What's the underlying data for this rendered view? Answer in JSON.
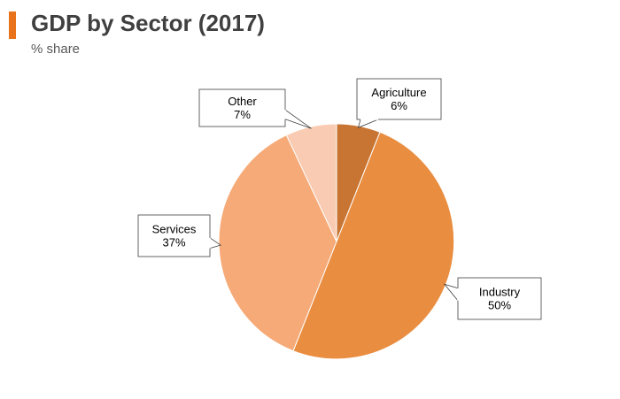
{
  "header": {
    "title": "GDP by Sector (2017)",
    "subtitle": "% share"
  },
  "colors": {
    "accent": "#E8731A",
    "agriculture": "#C87533",
    "industry": "#E98E41",
    "services": "#F6AA77",
    "other": "#F9CBB2"
  },
  "chart_data": {
    "type": "pie",
    "title": "GDP by Sector (2017)",
    "subtitle": "% share",
    "unit": "%",
    "start_angle_deg": 0,
    "direction": "clockwise",
    "legend": "none",
    "slices": [
      {
        "label": "Agriculture",
        "value": 6,
        "value_label": "6%",
        "color": "#C87533"
      },
      {
        "label": "Industry",
        "value": 50,
        "value_label": "50%",
        "color": "#E98E41"
      },
      {
        "label": "Services",
        "value": 37,
        "value_label": "37%",
        "color": "#F6AA77"
      },
      {
        "label": "Other",
        "value": 7,
        "value_label": "7%",
        "color": "#F9CBB2"
      }
    ]
  }
}
